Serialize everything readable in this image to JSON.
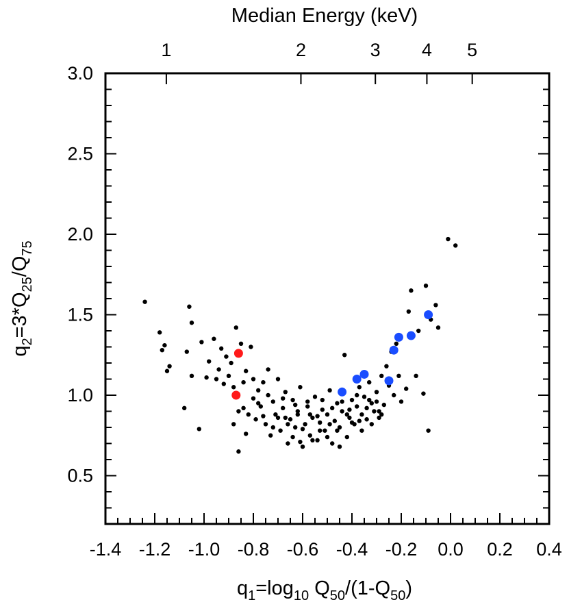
{
  "chart_data": {
    "type": "scatter",
    "title": "",
    "xlabel": {
      "prefix": "q",
      "prefix_sub": "1",
      "mid": "=log",
      "mid_sub": "10",
      "q1": " Q",
      "q1_sub": "50",
      "q2": "/(1-Q",
      "q2_sub": "50",
      "suffix": ")"
    },
    "ylabel": {
      "prefix": "q",
      "prefix_sub": "2",
      "mid": "=3*Q",
      "mid_sub": "25",
      "end": "/Q",
      "end_sub": "75"
    },
    "top_axis_label": "Median Energy (keV)",
    "xlim": [
      -1.4,
      0.4
    ],
    "ylim": [
      0.2,
      3.0
    ],
    "x_ticks": [
      "-1.4",
      "-1.2",
      "-1.0",
      "-0.8",
      "-0.6",
      "-0.4",
      "-0.2",
      "0.0",
      "0.2",
      "0.4"
    ],
    "y_ticks": [
      "0.5",
      "1.0",
      "1.5",
      "2.0",
      "2.5",
      "3.0"
    ],
    "top_ticks": [
      {
        "label": "1",
        "energy_keV": 1,
        "q1": -1.153
      },
      {
        "label": "2",
        "energy_keV": 2,
        "q1": -0.607
      },
      {
        "label": "3",
        "energy_keV": 3,
        "q1": -0.305
      },
      {
        "label": "4",
        "energy_keV": 4,
        "q1": -0.096
      },
      {
        "label": "5",
        "energy_keV": 5,
        "q1": 0.088
      }
    ],
    "grid": false,
    "series": [
      {
        "color": "#000000",
        "marker": "small",
        "points": [
          [
            -1.24,
            1.58
          ],
          [
            -1.18,
            1.39
          ],
          [
            -1.17,
            1.28
          ],
          [
            -1.16,
            1.31
          ],
          [
            -1.14,
            1.18
          ],
          [
            -1.15,
            1.15
          ],
          [
            -1.08,
            0.92
          ],
          [
            -1.07,
            1.27
          ],
          [
            -1.06,
            1.55
          ],
          [
            -1.05,
            1.45
          ],
          [
            -1.05,
            1.12
          ],
          [
            -1.02,
            0.79
          ],
          [
            -1.01,
            1.33
          ],
          [
            -0.99,
            1.11
          ],
          [
            -0.98,
            1.21
          ],
          [
            -0.96,
            1.35
          ],
          [
            -0.95,
            1.1
          ],
          [
            -0.94,
            1.16
          ],
          [
            -0.93,
            1.29
          ],
          [
            -0.92,
            1.07
          ],
          [
            -0.91,
            1.24
          ],
          [
            -0.9,
            1.12
          ],
          [
            -0.89,
            1.2
          ],
          [
            -0.88,
            1.05
          ],
          [
            -0.87,
            1.42
          ],
          [
            -0.86,
            0.65
          ],
          [
            -0.85,
            1.32
          ],
          [
            -0.84,
            0.92
          ],
          [
            -0.84,
            1.08
          ],
          [
            -0.83,
            1.15
          ],
          [
            -0.82,
            0.88
          ],
          [
            -0.81,
            1.3
          ],
          [
            -0.8,
            0.98
          ],
          [
            -0.79,
            0.85
          ],
          [
            -0.78,
            1.03
          ],
          [
            -0.77,
            0.93
          ],
          [
            -0.76,
            1.08
          ],
          [
            -0.75,
            0.82
          ],
          [
            -0.74,
            1.0
          ],
          [
            -0.73,
            0.75
          ],
          [
            -0.72,
            0.96
          ],
          [
            -0.71,
            0.88
          ],
          [
            -0.7,
            1.1
          ],
          [
            -0.69,
            0.78
          ],
          [
            -0.68,
            0.92
          ],
          [
            -0.67,
            1.02
          ],
          [
            -0.66,
            0.7
          ],
          [
            -0.65,
            0.85
          ],
          [
            -0.64,
            0.97
          ],
          [
            -0.63,
            0.8
          ],
          [
            -0.62,
            0.9
          ],
          [
            -0.61,
            1.05
          ],
          [
            -0.6,
            0.68
          ],
          [
            -0.59,
            0.82
          ],
          [
            -0.58,
            0.93
          ],
          [
            -0.57,
            0.75
          ],
          [
            -0.56,
            0.86
          ],
          [
            -0.55,
            0.99
          ],
          [
            -0.54,
            0.72
          ],
          [
            -0.53,
            0.83
          ],
          [
            -0.52,
            0.91
          ],
          [
            -0.51,
            0.78
          ],
          [
            -0.5,
            0.88
          ],
          [
            -0.49,
            1.03
          ],
          [
            -0.48,
            0.7
          ],
          [
            -0.47,
            0.84
          ],
          [
            -0.46,
            0.95
          ],
          [
            -0.45,
            0.8
          ],
          [
            -0.44,
            0.9
          ],
          [
            -0.43,
            1.25
          ],
          [
            -0.42,
            0.74
          ],
          [
            -0.41,
            0.86
          ],
          [
            -0.4,
            0.97
          ],
          [
            -0.39,
            0.82
          ],
          [
            -0.38,
            0.93
          ],
          [
            -0.37,
            1.05
          ],
          [
            -0.36,
            0.88
          ],
          [
            -0.35,
            0.99
          ],
          [
            -0.34,
            0.85
          ],
          [
            -0.33,
            1.08
          ],
          [
            -0.32,
            0.95
          ],
          [
            -0.31,
            0.9
          ],
          [
            -0.3,
            1.02
          ],
          [
            -0.29,
            0.86
          ],
          [
            -0.28,
            1.12
          ],
          [
            -0.27,
            0.94
          ],
          [
            -0.26,
            1.18
          ],
          [
            -0.25,
            1.06
          ],
          [
            -0.24,
            1.27
          ],
          [
            -0.23,
            1.0
          ],
          [
            -0.22,
            1.32
          ],
          [
            -0.21,
            1.12
          ],
          [
            -0.2,
            0.96
          ],
          [
            -0.18,
            1.04
          ],
          [
            -0.17,
            1.52
          ],
          [
            -0.16,
            1.65
          ],
          [
            -0.14,
            1.12
          ],
          [
            -0.13,
            1.4
          ],
          [
            -0.11,
            1.01
          ],
          [
            -0.1,
            1.68
          ],
          [
            -0.09,
            0.78
          ],
          [
            -0.08,
            1.47
          ],
          [
            -0.06,
            1.56
          ],
          [
            -0.05,
            1.42
          ],
          [
            -0.01,
            1.97
          ],
          [
            0.02,
            1.93
          ],
          [
            -0.88,
            0.82
          ],
          [
            -0.86,
            0.9
          ],
          [
            -0.83,
            0.76
          ],
          [
            -0.8,
            1.1
          ],
          [
            -0.78,
            0.95
          ],
          [
            -0.76,
            0.87
          ],
          [
            -0.74,
            1.16
          ],
          [
            -0.72,
            0.8
          ],
          [
            -0.7,
            0.86
          ],
          [
            -0.68,
            0.98
          ],
          [
            -0.66,
            0.82
          ],
          [
            -0.64,
            0.74
          ],
          [
            -0.62,
            0.88
          ],
          [
            -0.6,
            0.79
          ],
          [
            -0.58,
            0.96
          ],
          [
            -0.56,
            0.72
          ],
          [
            -0.54,
            0.87
          ],
          [
            -0.52,
            0.97
          ],
          [
            -0.5,
            0.74
          ],
          [
            -0.48,
            0.92
          ],
          [
            -0.46,
            0.78
          ],
          [
            -0.44,
            0.96
          ],
          [
            -0.42,
            0.88
          ],
          [
            -0.4,
            0.83
          ],
          [
            -0.38,
            1.0
          ],
          [
            -0.36,
            0.78
          ],
          [
            -0.34,
            0.92
          ],
          [
            -0.32,
            0.82
          ],
          [
            -0.3,
            0.96
          ],
          [
            -0.28,
            0.88
          ],
          [
            -0.67,
            0.86
          ],
          [
            -0.63,
            0.94
          ],
          [
            -0.61,
            0.71
          ],
          [
            -0.57,
            0.88
          ],
          [
            -0.53,
            0.78
          ],
          [
            -0.49,
            0.82
          ],
          [
            -0.45,
            0.68
          ],
          [
            -0.41,
            0.91
          ],
          [
            -0.37,
            0.84
          ],
          [
            -0.33,
            0.97
          ],
          [
            -0.29,
            0.9
          ]
        ]
      },
      {
        "color": "#ff1a1a",
        "marker": "large",
        "points": [
          [
            -0.86,
            1.26
          ],
          [
            -0.87,
            1.0
          ]
        ]
      },
      {
        "color": "#1a4dff",
        "marker": "large",
        "points": [
          [
            -0.44,
            1.02
          ],
          [
            -0.38,
            1.1
          ],
          [
            -0.35,
            1.13
          ],
          [
            -0.25,
            1.09
          ],
          [
            -0.23,
            1.28
          ],
          [
            -0.21,
            1.36
          ],
          [
            -0.16,
            1.37
          ],
          [
            -0.09,
            1.5
          ]
        ]
      }
    ]
  }
}
